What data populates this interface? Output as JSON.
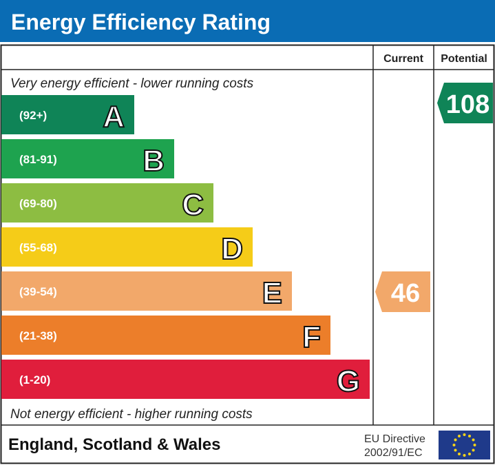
{
  "title": "Energy Efficiency Rating",
  "header": {
    "current": "Current",
    "potential": "Potential"
  },
  "top_note": "Very energy efficient - lower running costs",
  "bottom_note": "Not energy efficient - higher running costs",
  "footer": {
    "region": "England, Scotland & Wales",
    "directive_line1": "EU Directive",
    "directive_line2": "2002/91/EC",
    "flag": "eu-flag-icon"
  },
  "colors": {
    "header_bg": "#0a6cb4"
  },
  "chart_data": {
    "type": "bar",
    "bands": [
      {
        "letter": "A",
        "range": "(92+)",
        "color": "#0f8457"
      },
      {
        "letter": "B",
        "range": "(81-91)",
        "color": "#1ea34f"
      },
      {
        "letter": "C",
        "range": "(69-80)",
        "color": "#8dbd42"
      },
      {
        "letter": "D",
        "range": "(55-68)",
        "color": "#f5cc18"
      },
      {
        "letter": "E",
        "range": "(39-54)",
        "color": "#f2a86a"
      },
      {
        "letter": "F",
        "range": "(21-38)",
        "color": "#ec7e2a"
      },
      {
        "letter": "G",
        "range": "(1-20)",
        "color": "#e01e3c"
      }
    ],
    "current": {
      "value": "46",
      "band": "E",
      "color": "#f2a86a"
    },
    "potential": {
      "value": "108",
      "band": "A",
      "color": "#0f8457"
    }
  }
}
